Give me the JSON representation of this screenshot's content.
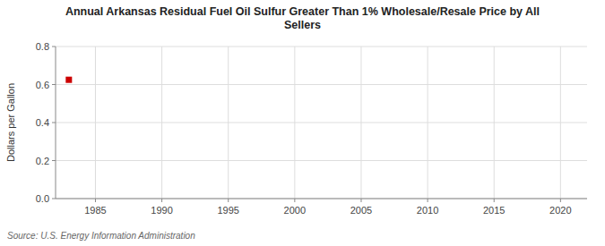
{
  "chart_data": {
    "type": "scatter",
    "title": "Annual Arkansas Residual Fuel Oil Sulfur Greater Than 1% Wholesale/Resale Price by All\nSellers",
    "y_label": "Dollars per Gallon",
    "annotations": [
      "Source: U.S. Energy Information Administration"
    ],
    "x": [
      1983
    ],
    "values": [
      0.625
    ],
    "color": "#cc0000",
    "marker": "square",
    "xlim": [
      1982,
      2022
    ],
    "ylim": [
      0.0,
      0.8
    ],
    "xticks": [
      1985,
      1990,
      1995,
      2000,
      2005,
      2010,
      2015,
      2020
    ],
    "yticks": [
      {
        "value": 0.0,
        "label": "0.0"
      },
      0.2,
      0.4,
      0.6,
      0.8
    ],
    "grid": true
  }
}
